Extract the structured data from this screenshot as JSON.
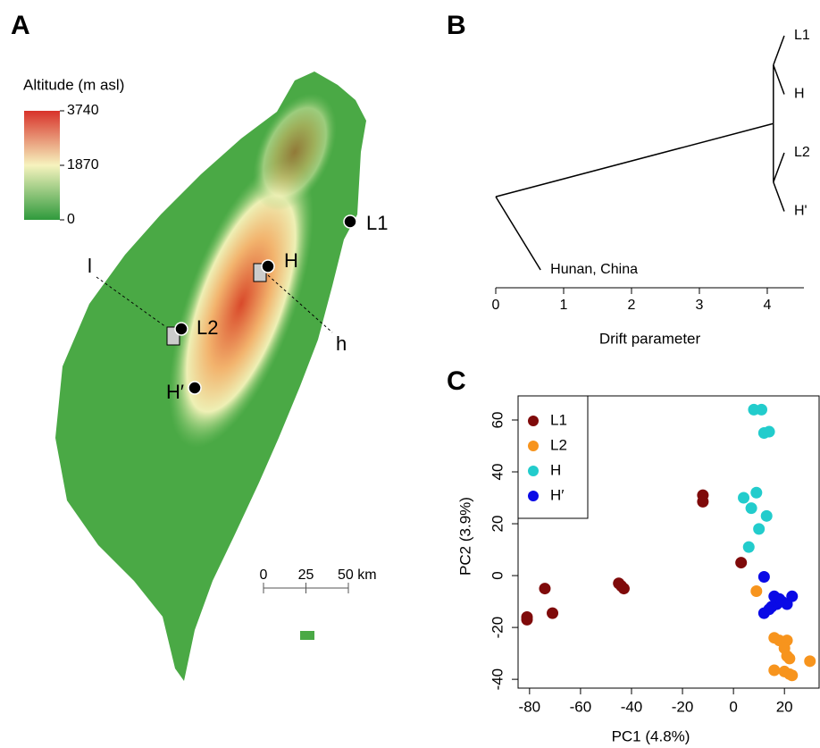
{
  "chart_data": [
    {
      "type": "map",
      "panel": "A",
      "legend_title": "Altitude (m asl)",
      "zlim": [
        0,
        3740
      ],
      "zticks": [
        0,
        1870,
        3740
      ],
      "colors": [
        "#2f9a3c",
        "#f6f3be",
        "#d8322a"
      ],
      "sites": [
        "L1",
        "H",
        "L2",
        "H′"
      ],
      "transect_labels": [
        "l",
        "h"
      ],
      "scalebar_lim": [
        0,
        50
      ],
      "scalebar_ticks": [
        0,
        25,
        {
          "value": 50,
          "label": "50 km"
        }
      ]
    },
    {
      "type": "tree",
      "panel": "B",
      "xlabel": "Drift parameter",
      "xlim": [
        0,
        4.54
      ],
      "xticks": [
        0,
        1,
        2,
        3,
        4
      ],
      "tree": {
        "drift": 0,
        "children": [
          {
            "drift": 4.09,
            "children": [
              {
                "drift": 4.09,
                "children": [
                  {
                    "label": "L1",
                    "drift": 4.25
                  },
                  {
                    "label": "H",
                    "drift": 4.25
                  }
                ]
              },
              {
                "drift": 4.09,
                "children": [
                  {
                    "label": "L2",
                    "drift": 4.25
                  },
                  {
                    "label": "H'",
                    "drift": 4.25
                  }
                ]
              }
            ]
          },
          {
            "label": "Hunan, China",
            "drift": 0.66
          }
        ]
      }
    },
    {
      "type": "scatter",
      "panel": "C",
      "xlabel": "PC1 (4.8%)",
      "ylabel": "PC2 (3.9%)",
      "xlim": [
        -84.5,
        33.6
      ],
      "ylim": [
        -43.4,
        69.3
      ],
      "xticks": [
        -80,
        -60,
        -40,
        -20,
        0,
        20
      ],
      "yticks": [
        -40,
        -20,
        0,
        20,
        40,
        60
      ],
      "series": [
        {
          "name": "L1",
          "color": "#7f0a0a",
          "x": [
            -81,
            -81,
            -74,
            -71,
            -45,
            -44,
            -43,
            -12,
            -12,
            3
          ],
          "values": [
            -16,
            -17,
            -5,
            -14.5,
            -3,
            -4,
            -5,
            31,
            28.5,
            5
          ]
        },
        {
          "name": "L2",
          "color": "#f7941d",
          "x": [
            9,
            16,
            18,
            21,
            20,
            21,
            22,
            16,
            20,
            22,
            23,
            30
          ],
          "values": [
            -6,
            -24,
            -25,
            -25,
            -28,
            -31,
            -32,
            -36.5,
            -37,
            -38,
            -38.5,
            -33
          ]
        },
        {
          "name": "H",
          "color": "#22cccc",
          "x": [
            8,
            11,
            12,
            14,
            9,
            4,
            7,
            13,
            10,
            6
          ],
          "values": [
            64,
            64,
            55,
            55.5,
            32,
            30,
            26,
            23,
            18,
            11
          ]
        },
        {
          "name": "H′",
          "color": "#0a0ae6",
          "x": [
            12,
            16,
            18,
            17,
            19,
            21,
            23,
            15,
            14,
            12
          ],
          "values": [
            -0.5,
            -8,
            -9,
            -11,
            -10,
            -11,
            -8,
            -12,
            -13,
            -14.5
          ]
        }
      ]
    }
  ]
}
